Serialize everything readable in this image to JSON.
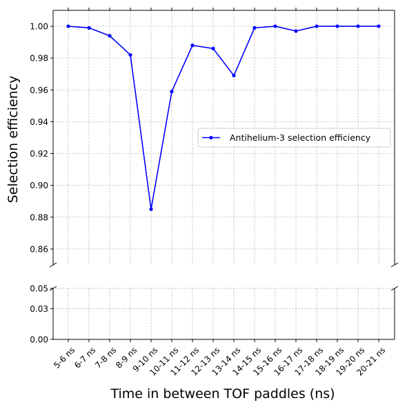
{
  "chart_data": {
    "type": "line",
    "xlabel": "Time in between TOF paddles (ns)",
    "ylabel": "Selection efficiency",
    "categories": [
      "5-6 ns",
      "6-7 ns",
      "7-8 ns",
      "8-9 ns",
      "9-10 ns",
      "10-11 ns",
      "11-12 ns",
      "12-13 ns",
      "13-14 ns",
      "14-15 ns",
      "15-16 ns",
      "16-17 ns",
      "17-18 ns",
      "18-19 ns",
      "19-20 ns",
      "20-21 ns"
    ],
    "series": [
      {
        "name": "Antihelium-3 selection efficiency",
        "color": "#0000ff",
        "marker": "circle",
        "values": [
          1.0,
          0.999,
          0.994,
          0.982,
          0.885,
          0.959,
          0.988,
          0.986,
          0.969,
          0.999,
          1.0,
          0.997,
          1.0,
          1.0,
          1.0,
          1.0
        ]
      }
    ],
    "broken_y_axis": true,
    "upper_panel": {
      "ylim": [
        0.85,
        1.01
      ],
      "yticks": [
        0.86,
        0.88,
        0.9,
        0.92,
        0.94,
        0.96,
        0.98,
        1.0
      ],
      "ytick_labels": [
        "0.86",
        "0.88",
        "0.90",
        "0.92",
        "0.94",
        "0.96",
        "0.98",
        "1.00"
      ]
    },
    "lower_panel": {
      "ylim": [
        0.0,
        0.05
      ],
      "yticks": [
        0.0,
        0.03,
        0.05
      ],
      "ytick_labels": [
        "0.00",
        "0.03",
        "0.05"
      ]
    },
    "grid": true,
    "legend_position": "center-right"
  }
}
